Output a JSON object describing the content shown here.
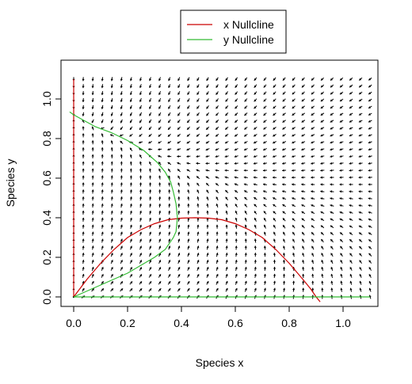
{
  "chart_data": {
    "type": "line",
    "xlabel": "Species x",
    "ylabel": "Species y",
    "xlim": [
      -0.05,
      1.15
    ],
    "ylim": [
      -0.05,
      1.13
    ],
    "x_ticks": [
      "0.0",
      "0.2",
      "0.4",
      "0.6",
      "0.8",
      "1.0"
    ],
    "y_ticks": [
      "0.0",
      "0.2",
      "0.4",
      "0.6",
      "0.8",
      "1.0"
    ],
    "legend_position": "top-center",
    "vector_field": {
      "x_range": [
        0,
        1.1
      ],
      "y_range": [
        0,
        1.1
      ],
      "spacing": 0.0355,
      "color": "#000000"
    },
    "series": [
      {
        "name": "x Nullcline",
        "color": "#cc0000",
        "segments": [
          [
            [
              0,
              0
            ],
            [
              0,
              1.1
            ]
          ],
          [
            [
              0,
              0
            ],
            [
              0.05,
              0.09
            ],
            [
              0.1,
              0.17
            ],
            [
              0.15,
              0.24
            ],
            [
              0.2,
              0.3
            ],
            [
              0.25,
              0.34
            ],
            [
              0.3,
              0.37
            ],
            [
              0.35,
              0.39
            ],
            [
              0.4,
              0.398
            ],
            [
              0.45,
              0.4
            ],
            [
              0.5,
              0.398
            ],
            [
              0.55,
              0.39
            ],
            [
              0.6,
              0.37
            ],
            [
              0.65,
              0.34
            ],
            [
              0.7,
              0.3
            ],
            [
              0.75,
              0.24
            ],
            [
              0.8,
              0.17
            ],
            [
              0.85,
              0.09
            ],
            [
              0.88,
              0.04
            ],
            [
              0.9,
              0.0
            ],
            [
              0.915,
              -0.025
            ]
          ]
        ]
      },
      {
        "name": "y Nullcline",
        "color": "#33bb33",
        "segments": [
          [
            [
              0,
              0
            ],
            [
              1.1,
              0
            ]
          ],
          [
            [
              0,
              0
            ],
            [
              0.05,
              0.03
            ],
            [
              0.1,
              0.06
            ],
            [
              0.15,
              0.09
            ],
            [
              0.2,
              0.12
            ],
            [
              0.25,
              0.16
            ],
            [
              0.3,
              0.2
            ],
            [
              0.34,
              0.24
            ],
            [
              0.37,
              0.3
            ],
            [
              0.38,
              0.33
            ],
            [
              0.385,
              0.4
            ],
            [
              0.38,
              0.47
            ],
            [
              0.37,
              0.53
            ],
            [
              0.36,
              0.58
            ],
            [
              0.34,
              0.63
            ],
            [
              0.31,
              0.68
            ],
            [
              0.26,
              0.74
            ],
            [
              0.2,
              0.79
            ],
            [
              0.14,
              0.83
            ],
            [
              0.08,
              0.86
            ],
            [
              0.0,
              0.92
            ],
            [
              -0.015,
              0.935
            ]
          ]
        ]
      }
    ]
  }
}
